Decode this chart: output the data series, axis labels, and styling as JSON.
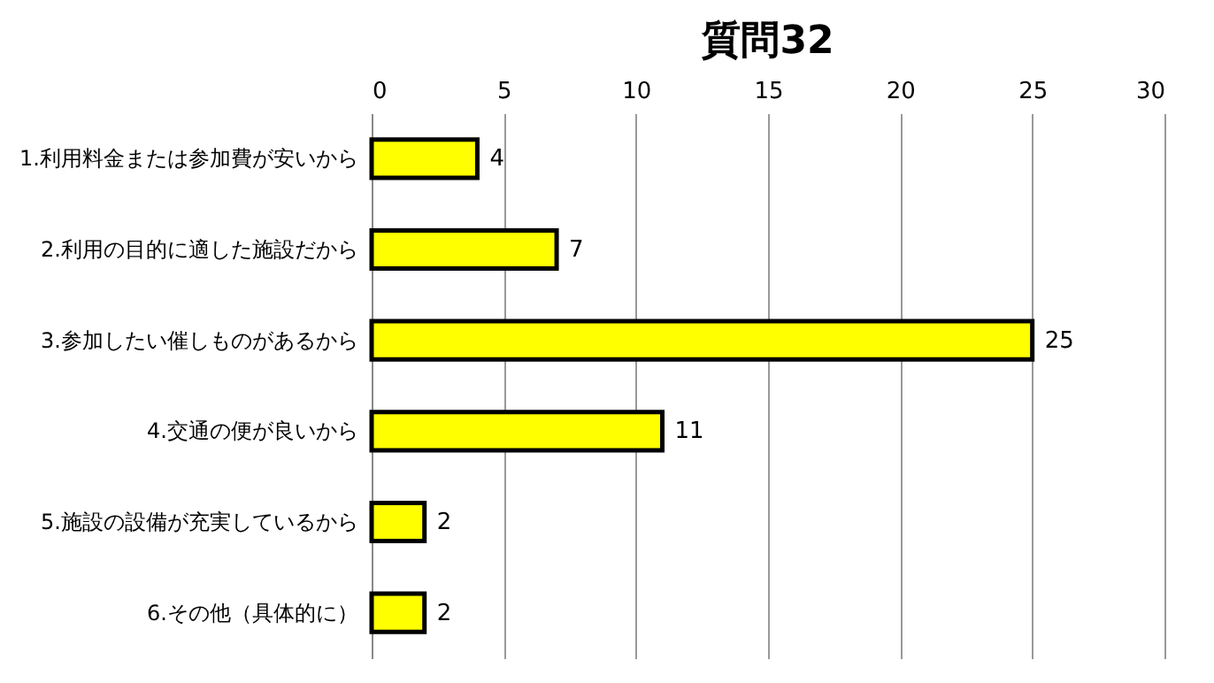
{
  "chart_data": {
    "type": "bar",
    "title": "質問32",
    "orientation": "horizontal",
    "categories": [
      "1.利用料金または参加費が安いから",
      "2.利用の目的に適した施設だから",
      "3.参加したい催しものがあるから",
      "4.交通の便が良いから",
      "5.施設の設備が充実しているから",
      "6.その他（具体的に）"
    ],
    "values": [
      4,
      7,
      25,
      11,
      2,
      2
    ],
    "color": "#ffff00",
    "xlim": [
      0,
      30
    ],
    "xticks": [
      0,
      5,
      10,
      15,
      20,
      25,
      30
    ],
    "grid": "x",
    "data_labels": true
  }
}
